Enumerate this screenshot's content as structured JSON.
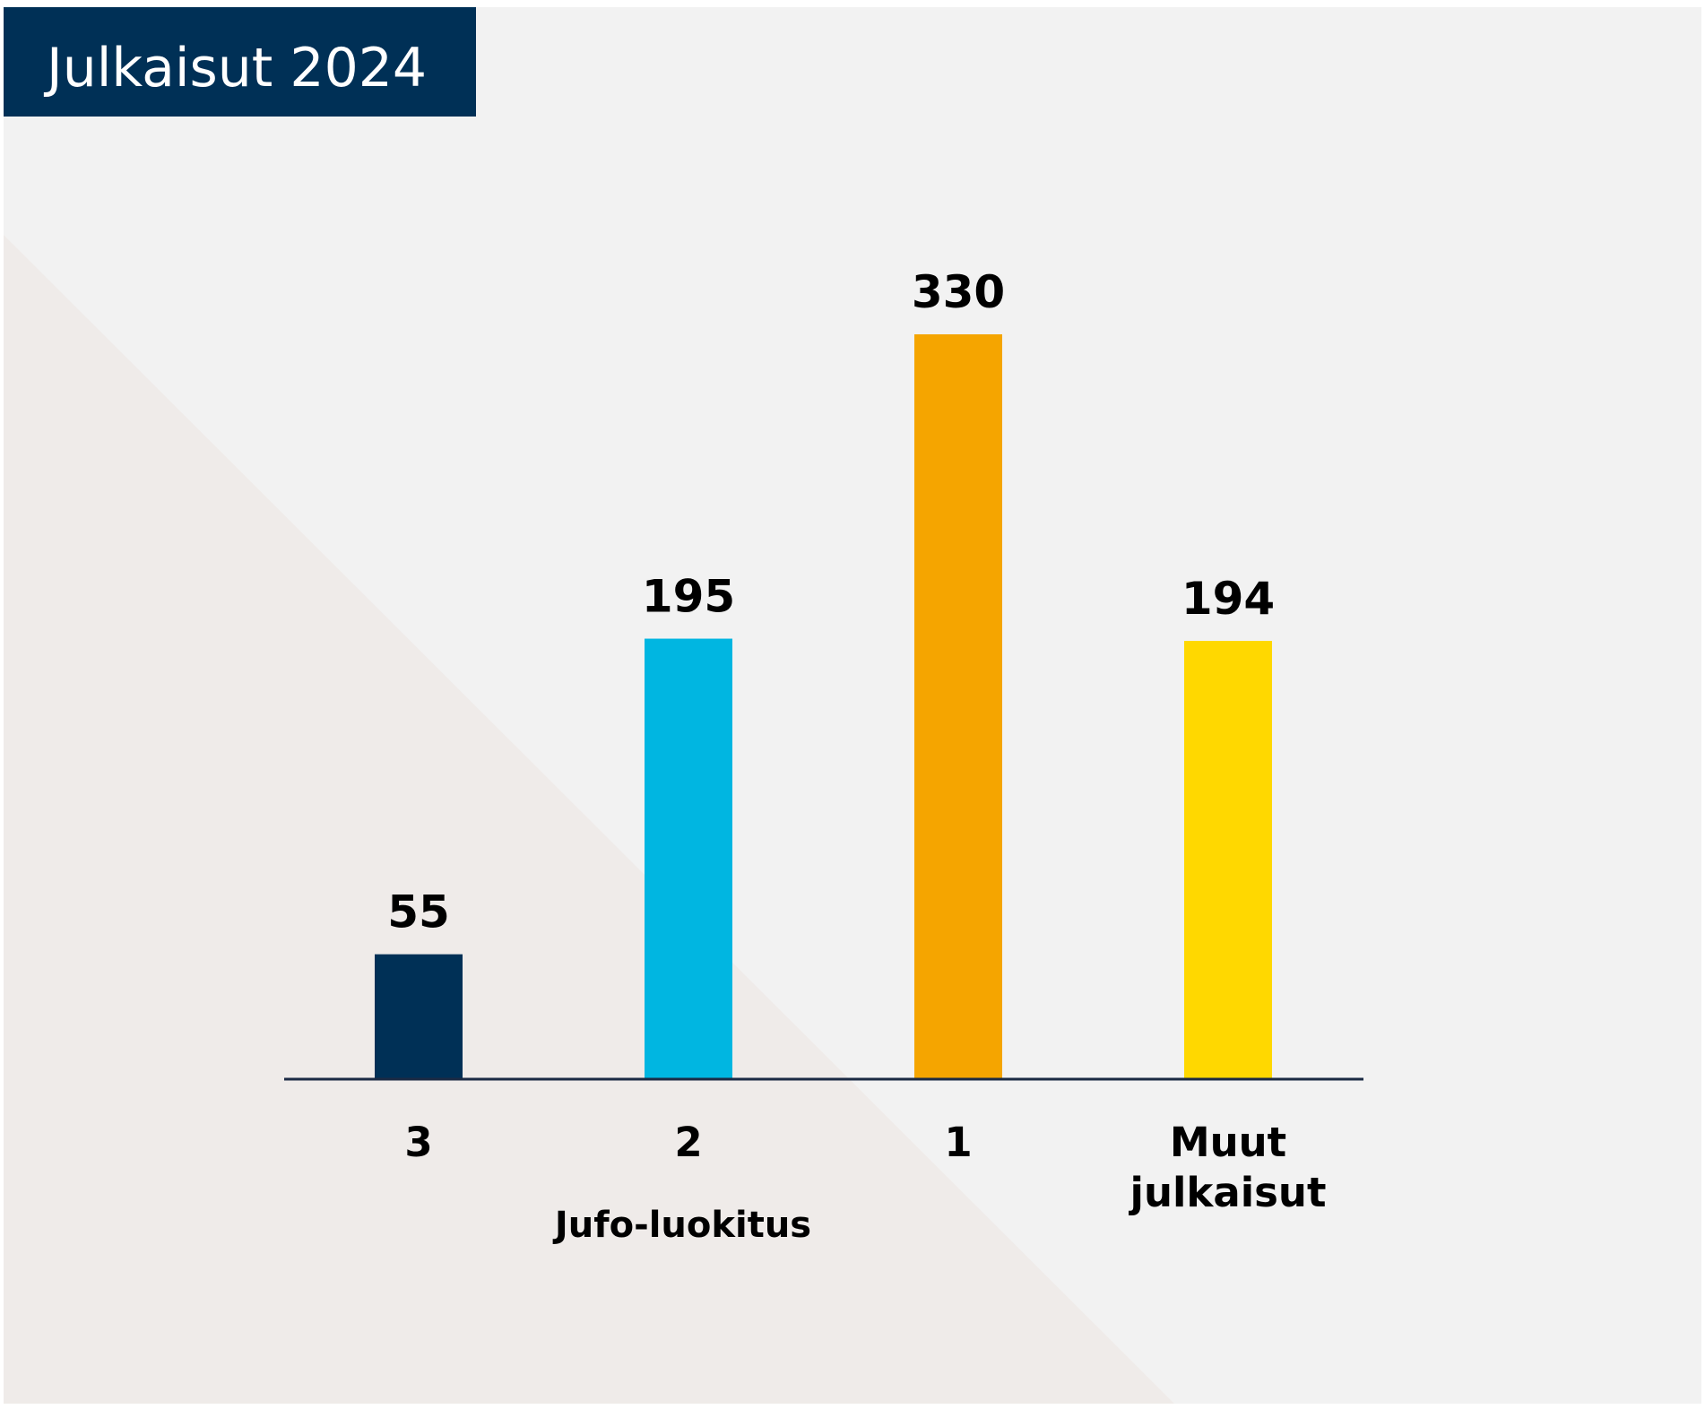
{
  "title": "Julkaisut 2024",
  "chart_data": {
    "type": "bar",
    "categories": [
      [
        "3"
      ],
      [
        "2"
      ],
      [
        "1"
      ],
      [
        "Muut",
        "julkaisut"
      ]
    ],
    "values": [
      55,
      195,
      330,
      194
    ],
    "colors": [
      "#003056",
      "#00b6e1",
      "#f5a500",
      "#ffd800"
    ],
    "xlabel": "Jufo-luokitus",
    "ylabel": "",
    "ylim": [
      0,
      330
    ],
    "grid": false,
    "legend": "none"
  },
  "colors": {
    "title_bg": "#003056",
    "panel_bg": "#f2f2f2",
    "triangle_bg": "#efebe9",
    "axis": "#1b2a44"
  }
}
